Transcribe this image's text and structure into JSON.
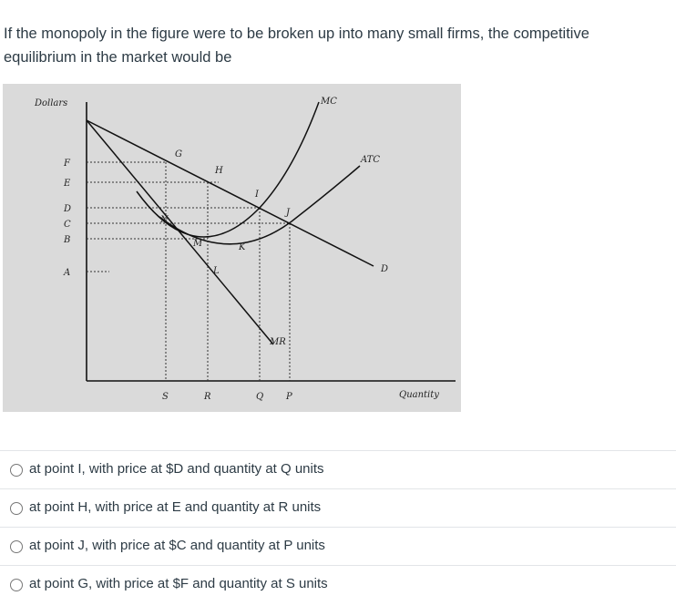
{
  "question": "If the monopoly in the figure were to be broken up into many small firms, the competitive equilibrium in the market would be",
  "figure": {
    "y_axis_label": "Dollars",
    "x_axis_label": "Quantity",
    "price_labels": [
      "F",
      "E",
      "D",
      "C",
      "B",
      "A"
    ],
    "quantity_labels": [
      "S",
      "R",
      "Q",
      "P"
    ],
    "curve_labels": [
      "MC",
      "ATC",
      "D",
      "MR"
    ],
    "point_labels": [
      "G",
      "H",
      "I",
      "J",
      "K",
      "L",
      "M",
      "N"
    ]
  },
  "options": [
    "at point I, with price at $D and quantity at Q units",
    "at point H, with price at E and quantity at R units",
    "at point J, with price at $C and quantity at P units",
    "at point G, with price at $F and quantity at S units"
  ]
}
